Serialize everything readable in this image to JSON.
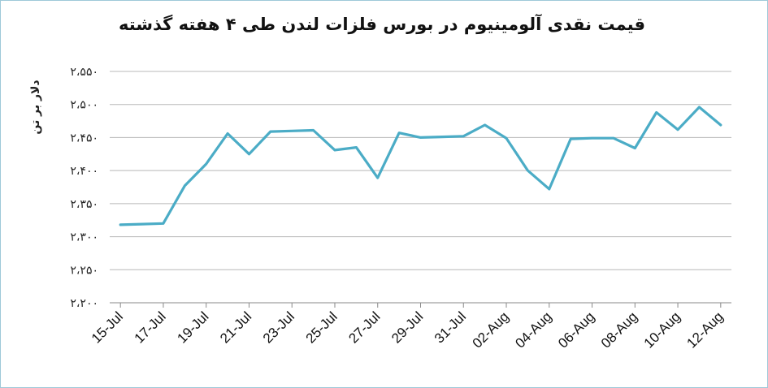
{
  "chart_data": {
    "type": "line",
    "title": "قیمت نقدی آلومینیوم در بورس فلزات لندن طی ۴ هفته گذشته",
    "ylabel": "دلار بر تن",
    "xlabel": "",
    "ylim": [
      2200,
      2550
    ],
    "y_ticks": [
      "۲،۲۰۰",
      "۲،۲۵۰",
      "۲،۳۰۰",
      "۲،۳۵۰",
      "۲،۴۰۰",
      "۲،۴۵۰",
      "۲،۵۰۰",
      "۲،۵۵۰"
    ],
    "y_tick_values": [
      2200,
      2250,
      2300,
      2350,
      2400,
      2450,
      2500,
      2550
    ],
    "x_tick_labels": [
      "15-Jul",
      "17-Jul",
      "19-Jul",
      "21-Jul",
      "23-Jul",
      "25-Jul",
      "27-Jul",
      "29-Jul",
      "31-Jul",
      "02-Aug",
      "04-Aug",
      "06-Aug",
      "08-Aug",
      "10-Aug",
      "12-Aug"
    ],
    "x": [
      "15-Jul",
      "16-Jul",
      "17-Jul",
      "18-Jul",
      "19-Jul",
      "20-Jul",
      "21-Jul",
      "22-Jul",
      "23-Jul",
      "24-Jul",
      "25-Jul",
      "26-Jul",
      "27-Jul",
      "28-Jul",
      "29-Jul",
      "30-Jul",
      "31-Jul",
      "01-Aug",
      "02-Aug",
      "03-Aug",
      "04-Aug",
      "05-Aug",
      "06-Aug",
      "07-Aug",
      "08-Aug",
      "09-Aug",
      "10-Aug",
      "11-Aug",
      "12-Aug"
    ],
    "series": [
      {
        "name": "",
        "color": "#4bacc6",
        "values": [
          2318,
          2319,
          2320,
          2377,
          2410,
          2456,
          2425,
          2459,
          2460,
          2461,
          2431,
          2435,
          2389,
          2457,
          2450,
          2451,
          2452,
          2469,
          2449,
          2400,
          2372,
          2448,
          2449,
          2449,
          2434,
          2488,
          2462,
          2496,
          2469
        ]
      }
    ],
    "grid": true,
    "legend": "none"
  }
}
